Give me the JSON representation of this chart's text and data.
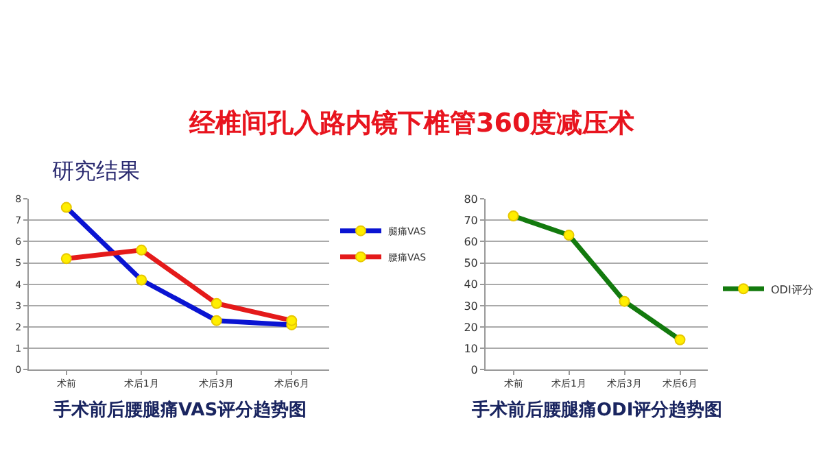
{
  "chart_data": [
    {
      "type": "line",
      "title": "经椎间孔入路内镜下椎管360度减压术",
      "subtitle": "研究结果",
      "xlabel": "手术前后腰腿痛VAS评分趋势图",
      "categories": [
        "术前",
        "术后1月",
        "术后3月",
        "术后6月"
      ],
      "series": [
        {
          "name": "腿痛VAS",
          "color": "#0a14d2",
          "values": [
            7.6,
            4.2,
            2.3,
            2.1
          ]
        },
        {
          "name": "腰痛VAS",
          "color": "#e41a1a",
          "values": [
            5.2,
            5.6,
            3.1,
            2.3
          ]
        }
      ],
      "ylim": [
        0,
        8
      ],
      "yticks": [
        0,
        1,
        2,
        3,
        4,
        5,
        6,
        7,
        8
      ],
      "grid": "y",
      "legend": "right",
      "marker": "circle",
      "line_style": "solid"
    },
    {
      "type": "line",
      "xlabel": "手术前后腰腿痛ODI评分趋势图",
      "categories": [
        "术前",
        "术后1月",
        "术后3月",
        "术后6月"
      ],
      "series": [
        {
          "name": "ODI评分",
          "color": "#137a0e",
          "values": [
            72,
            63,
            32,
            14
          ]
        }
      ],
      "ylim": [
        0,
        80
      ],
      "yticks": [
        0,
        10,
        20,
        30,
        40,
        50,
        60,
        70,
        80
      ],
      "grid": "y",
      "legend": "right",
      "marker": "circle",
      "line_style": "solid"
    }
  ]
}
